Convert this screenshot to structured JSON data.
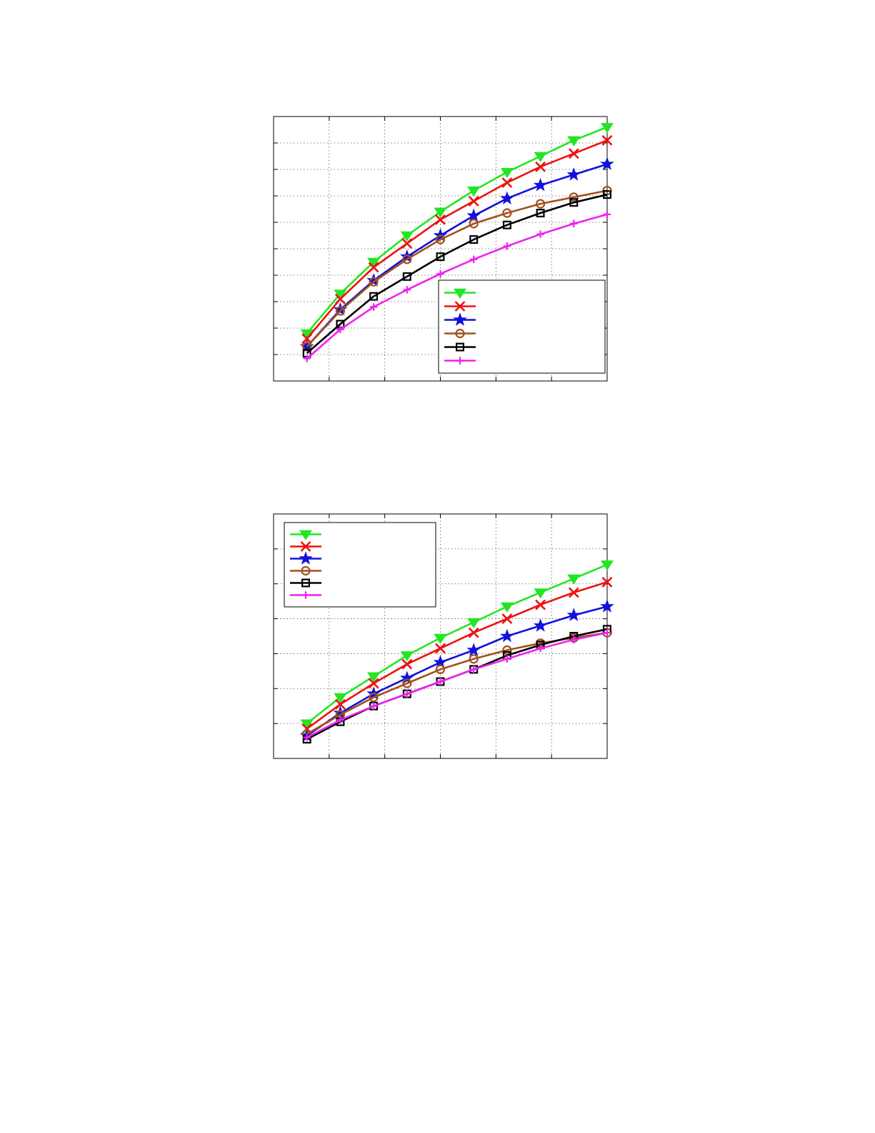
{
  "chart_data": [
    {
      "type": "line",
      "title": "",
      "xlabel": "",
      "ylabel": "",
      "xlim": [
        0,
        6
      ],
      "ylim": [
        0,
        10
      ],
      "x_ticks": [
        0,
        1,
        2,
        3,
        4,
        5,
        6
      ],
      "y_ticks": [
        0,
        1,
        2,
        3,
        4,
        5,
        6,
        7,
        8,
        9,
        10
      ],
      "grid": true,
      "legend_position": "bottom-right",
      "x": [
        0.6,
        1.2,
        1.8,
        2.4,
        3.0,
        3.6,
        4.2,
        4.8,
        5.4,
        6.0
      ],
      "series": [
        {
          "color": "#22e622",
          "marker": "triangle-down",
          "values": [
            1.8,
            3.3,
            4.5,
            5.5,
            6.4,
            7.2,
            7.9,
            8.5,
            9.1,
            9.6
          ]
        },
        {
          "color": "#ee1111",
          "marker": "x",
          "values": [
            1.6,
            3.1,
            4.3,
            5.2,
            6.1,
            6.8,
            7.5,
            8.1,
            8.6,
            9.1
          ]
        },
        {
          "color": "#1111dd",
          "marker": "star",
          "values": [
            1.3,
            2.7,
            3.8,
            4.7,
            5.5,
            6.25,
            6.9,
            7.4,
            7.8,
            8.2
          ]
        },
        {
          "color": "#a0521e",
          "marker": "circle",
          "values": [
            1.3,
            2.65,
            3.75,
            4.6,
            5.35,
            5.95,
            6.35,
            6.7,
            6.95,
            7.2
          ]
        },
        {
          "color": "#000000",
          "marker": "square",
          "values": [
            1.05,
            2.15,
            3.2,
            3.95,
            4.7,
            5.35,
            5.9,
            6.35,
            6.75,
            7.05
          ]
        },
        {
          "color": "#ee22ee",
          "marker": "plus",
          "values": [
            0.85,
            1.95,
            2.8,
            3.45,
            4.05,
            4.6,
            5.1,
            5.55,
            5.95,
            6.3
          ]
        }
      ]
    },
    {
      "type": "line",
      "title": "",
      "xlabel": "",
      "ylabel": "",
      "xlim": [
        0,
        6
      ],
      "ylim": [
        0,
        7
      ],
      "x_ticks": [
        0,
        1,
        2,
        3,
        4,
        5,
        6
      ],
      "y_ticks": [
        0,
        1,
        2,
        3,
        4,
        5,
        6,
        7
      ],
      "grid": true,
      "legend_position": "top-left",
      "x": [
        0.6,
        1.2,
        1.8,
        2.4,
        3.0,
        3.6,
        4.2,
        4.8,
        5.4,
        6.0
      ],
      "series": [
        {
          "color": "#22e622",
          "marker": "triangle-down",
          "values": [
            1.0,
            1.75,
            2.35,
            2.95,
            3.45,
            3.9,
            4.35,
            4.75,
            5.15,
            5.55
          ]
        },
        {
          "color": "#ee1111",
          "marker": "x",
          "values": [
            0.85,
            1.55,
            2.15,
            2.7,
            3.15,
            3.6,
            4.0,
            4.4,
            4.75,
            5.05
          ]
        },
        {
          "color": "#1111dd",
          "marker": "star",
          "values": [
            0.65,
            1.3,
            1.85,
            2.3,
            2.75,
            3.1,
            3.5,
            3.8,
            4.1,
            4.35
          ]
        },
        {
          "color": "#a0521e",
          "marker": "circle",
          "values": [
            0.7,
            1.25,
            1.75,
            2.15,
            2.55,
            2.85,
            3.1,
            3.3,
            3.45,
            3.6
          ]
        },
        {
          "color": "#000000",
          "marker": "square",
          "values": [
            0.55,
            1.05,
            1.5,
            1.85,
            2.2,
            2.55,
            2.95,
            3.25,
            3.5,
            3.7
          ]
        },
        {
          "color": "#ee22ee",
          "marker": "plus",
          "values": [
            0.6,
            1.1,
            1.5,
            1.85,
            2.2,
            2.55,
            2.85,
            3.15,
            3.4,
            3.6
          ]
        }
      ]
    }
  ]
}
